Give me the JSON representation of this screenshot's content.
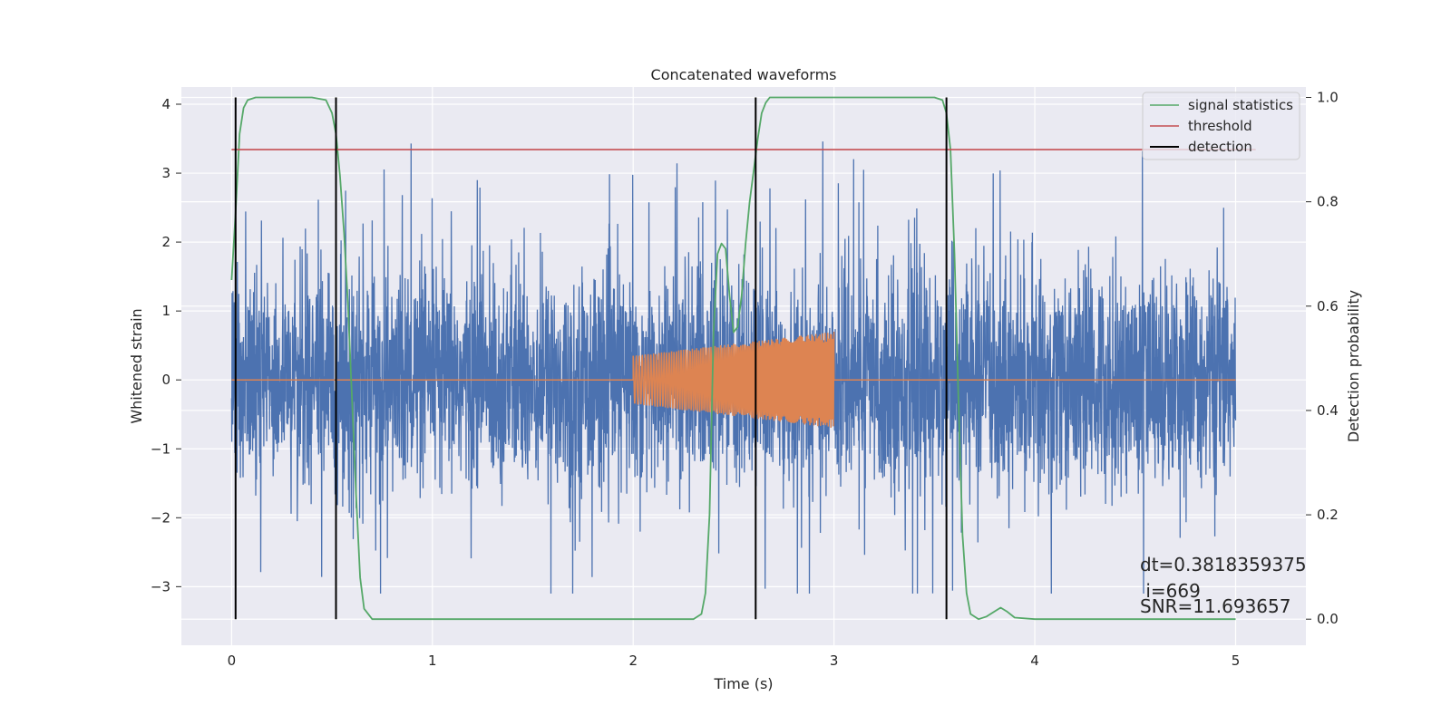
{
  "chart_data": {
    "type": "line",
    "title": "Concatenated waveforms",
    "xlabel": "Time (s)",
    "ylabel": "Whitened strain",
    "y2label": "Detection probability",
    "xlim": [
      -0.25,
      5.35
    ],
    "ylim": [
      -3.85,
      4.25
    ],
    "y2lim": [
      -0.05,
      1.02
    ],
    "x_ticks": [
      0,
      1,
      2,
      3,
      4,
      5
    ],
    "x_tick_labels": [
      "0",
      "1",
      "2",
      "3",
      "4",
      "5"
    ],
    "y_ticks": [
      4,
      3,
      2,
      1,
      0,
      -1,
      -2,
      -3
    ],
    "y_tick_labels": [
      "4",
      "3",
      "2",
      "1",
      "0",
      "−1",
      "−2",
      "−3"
    ],
    "y2_ticks": [
      1.0,
      0.8,
      0.6,
      0.4,
      0.2,
      0.0
    ],
    "y2_tick_labels": [
      "1.0",
      "0.8",
      "0.6",
      "0.4",
      "0.2",
      "0.0"
    ],
    "grid": true,
    "legend_position": "top-right",
    "colors": {
      "strain": "#4c72b0",
      "template": "#dd8452",
      "signal_statistics": "#55a868",
      "threshold": "#c44e52",
      "detection": "#000000",
      "background": "#eaeaf2",
      "grid": "#ffffff"
    },
    "series": [
      {
        "name": "",
        "kind": "whitened-strain-noise",
        "axis": "left",
        "x_range": [
          0,
          5
        ],
        "amplitude_range": [
          -3.1,
          3.9
        ],
        "typical_band": [
          -1.4,
          1.6
        ]
      },
      {
        "name": "",
        "kind": "injected-chirp",
        "axis": "left",
        "x_range": [
          2.0,
          3.0
        ],
        "amplitude_start": 0.35,
        "amplitude_end": 0.7,
        "baseline": 0
      },
      {
        "name": "signal statistics",
        "axis": "right",
        "x": [
          0.0,
          0.02,
          0.04,
          0.06,
          0.08,
          0.12,
          0.2,
          0.3,
          0.4,
          0.47,
          0.5,
          0.52,
          0.54,
          0.56,
          0.58,
          0.6,
          0.62,
          0.64,
          0.66,
          0.7,
          0.8,
          1.0,
          1.5,
          2.0,
          2.3,
          2.34,
          2.36,
          2.38,
          2.4,
          2.42,
          2.44,
          2.46,
          2.48,
          2.5,
          2.52,
          2.54,
          2.56,
          2.58,
          2.6,
          2.62,
          2.64,
          2.66,
          2.68,
          2.72,
          2.8,
          3.0,
          3.3,
          3.5,
          3.54,
          3.56,
          3.58,
          3.6,
          3.62,
          3.64,
          3.66,
          3.68,
          3.72,
          3.76,
          3.8,
          3.83,
          3.86,
          3.9,
          4.0,
          4.5,
          5.0
        ],
        "y": [
          0.65,
          0.78,
          0.93,
          0.98,
          0.995,
          1.0,
          1.0,
          1.0,
          1.0,
          0.995,
          0.97,
          0.93,
          0.85,
          0.74,
          0.6,
          0.42,
          0.24,
          0.08,
          0.02,
          0.0,
          0.0,
          0.0,
          0.0,
          0.0,
          0.0,
          0.01,
          0.05,
          0.2,
          0.55,
          0.7,
          0.72,
          0.71,
          0.62,
          0.55,
          0.56,
          0.62,
          0.72,
          0.8,
          0.86,
          0.92,
          0.97,
          0.99,
          1.0,
          1.0,
          1.0,
          1.0,
          1.0,
          1.0,
          0.995,
          0.97,
          0.9,
          0.7,
          0.42,
          0.16,
          0.05,
          0.01,
          0.0,
          0.005,
          0.015,
          0.022,
          0.015,
          0.003,
          0.0,
          0.0,
          0.0
        ]
      },
      {
        "name": "threshold",
        "axis": "right",
        "x": [
          0.0,
          5.1
        ],
        "y": [
          0.9,
          0.9
        ]
      },
      {
        "name": "detection",
        "axis": "right",
        "x": [
          0.02,
          0.52,
          2.61,
          3.56
        ],
        "y_range": [
          0.0,
          1.0
        ]
      }
    ],
    "legend": [
      "signal statistics",
      "threshold",
      "detection"
    ],
    "annotations": [
      "dt=0.3818359375",
      " i=669",
      "SNR=11.693657"
    ]
  }
}
